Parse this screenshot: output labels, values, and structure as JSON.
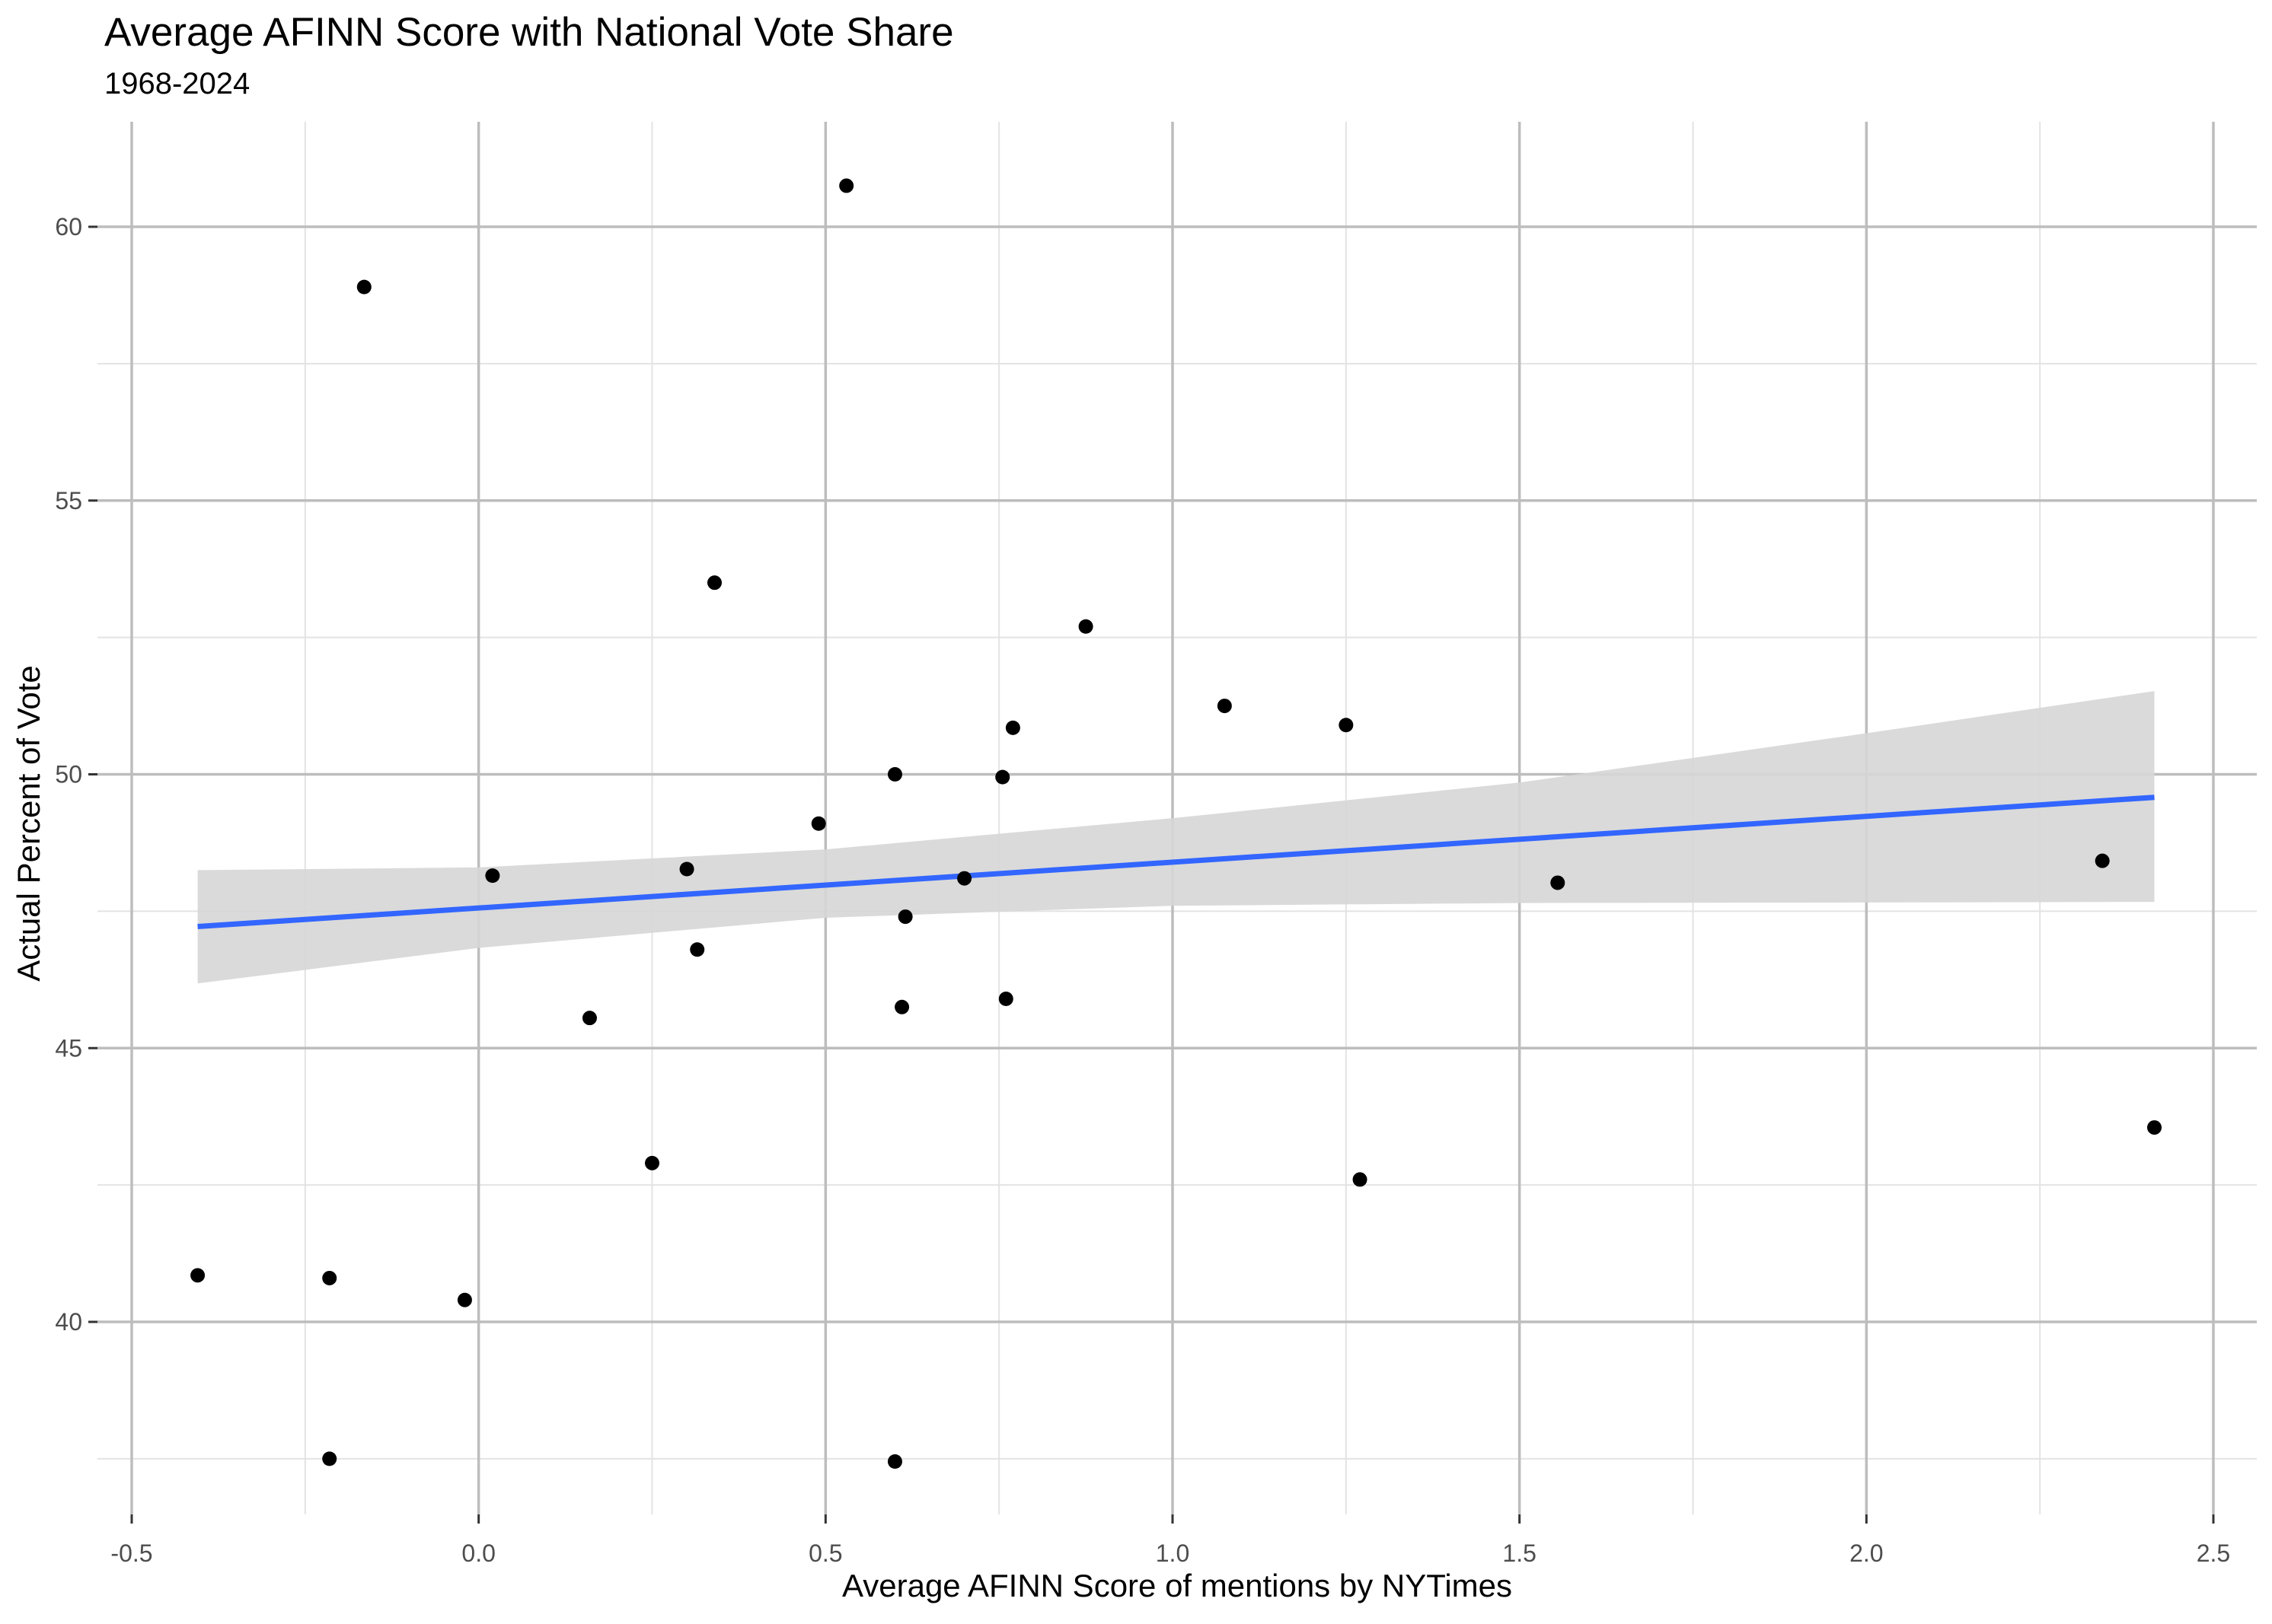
{
  "chart_data": {
    "type": "scatter",
    "title": "Average AFINN Score with National Vote Share",
    "subtitle": "1968-2024",
    "xlabel": "Average AFINN Score of mentions by NYTimes",
    "ylabel": "Actual Percent of Vote",
    "xlim": [
      -0.5,
      2.5
    ],
    "ylim": [
      37.5,
      61.2
    ],
    "x_ticks": [
      -0.5,
      0.0,
      0.5,
      1.0,
      1.5,
      2.0,
      2.5
    ],
    "x_tick_labels": [
      "-0.5",
      "0.0",
      "0.5",
      "1.0",
      "1.5",
      "2.0",
      "2.5"
    ],
    "y_ticks": [
      40,
      45,
      50,
      55,
      60
    ],
    "y_tick_labels": [
      "40",
      "45",
      "50",
      "55",
      "60"
    ],
    "grid": true,
    "points": [
      {
        "x": -0.405,
        "y": 40.85
      },
      {
        "x": -0.215,
        "y": 40.8
      },
      {
        "x": -0.215,
        "y": 37.5
      },
      {
        "x": -0.165,
        "y": 58.9
      },
      {
        "x": -0.02,
        "y": 40.4
      },
      {
        "x": 0.02,
        "y": 48.15
      },
      {
        "x": 0.16,
        "y": 45.55
      },
      {
        "x": 0.25,
        "y": 42.9
      },
      {
        "x": 0.3,
        "y": 48.27
      },
      {
        "x": 0.315,
        "y": 46.8
      },
      {
        "x": 0.34,
        "y": 53.5
      },
      {
        "x": 0.49,
        "y": 49.1
      },
      {
        "x": 0.53,
        "y": 60.75
      },
      {
        "x": 0.6,
        "y": 50.0
      },
      {
        "x": 0.6,
        "y": 37.45
      },
      {
        "x": 0.61,
        "y": 45.75
      },
      {
        "x": 0.615,
        "y": 47.4
      },
      {
        "x": 0.7,
        "y": 48.1
      },
      {
        "x": 0.755,
        "y": 49.95
      },
      {
        "x": 0.76,
        "y": 45.9
      },
      {
        "x": 0.77,
        "y": 50.85
      },
      {
        "x": 0.875,
        "y": 52.7
      },
      {
        "x": 1.075,
        "y": 51.25
      },
      {
        "x": 1.25,
        "y": 50.9
      },
      {
        "x": 1.27,
        "y": 42.6
      },
      {
        "x": 1.555,
        "y": 48.02
      },
      {
        "x": 2.34,
        "y": 48.42
      },
      {
        "x": 2.415,
        "y": 43.55
      }
    ],
    "trend_line": {
      "x": [
        -0.405,
        2.415
      ],
      "y": [
        47.22,
        49.58
      ]
    },
    "confidence_band": {
      "x": [
        -0.405,
        0.0,
        0.5,
        1.0,
        1.5,
        2.0,
        2.415
      ],
      "lower": [
        46.18,
        46.83,
        47.38,
        47.6,
        47.65,
        47.66,
        47.67
      ],
      "upper": [
        48.25,
        48.3,
        48.63,
        49.2,
        49.85,
        50.75,
        51.52
      ]
    },
    "colors": {
      "points": "#000000",
      "trend_line": "#3366ff",
      "band": "#d6d6d6",
      "grid_major": "#bdbdbd",
      "grid_minor": "#e3e3e3",
      "tick_text": "#4d4d4d"
    }
  }
}
